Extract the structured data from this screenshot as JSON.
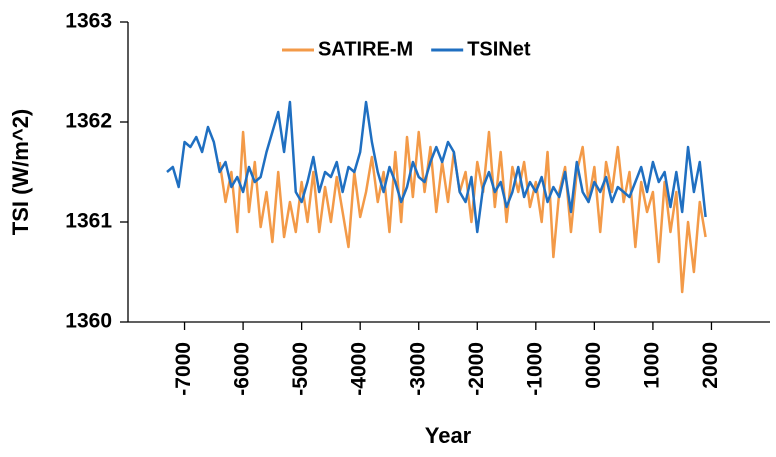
{
  "chart_data": {
    "type": "line",
    "x_label": "Year",
    "y_label": "TSI (W/m^2)",
    "x": [
      -7300,
      -7200,
      -7100,
      -7000,
      -6900,
      -6800,
      -6700,
      -6600,
      -6500,
      -6400,
      -6300,
      -6200,
      -6100,
      -6000,
      -5900,
      -5800,
      -5700,
      -5600,
      -5500,
      -5400,
      -5300,
      -5200,
      -5100,
      -5000,
      -4900,
      -4800,
      -4700,
      -4600,
      -4500,
      -4400,
      -4300,
      -4200,
      -4100,
      -4000,
      -3900,
      -3800,
      -3700,
      -3600,
      -3500,
      -3400,
      -3300,
      -3200,
      -3100,
      -3000,
      -2900,
      -2800,
      -2700,
      -2600,
      -2500,
      -2400,
      -2300,
      -2200,
      -2100,
      -2000,
      -1900,
      -1800,
      -1700,
      -1600,
      -1500,
      -1400,
      -1300,
      -1200,
      -1100,
      -1000,
      -900,
      -800,
      -700,
      -600,
      -500,
      -400,
      -300,
      -200,
      -100,
      0,
      100,
      200,
      300,
      400,
      500,
      600,
      700,
      800,
      900,
      1000,
      1100,
      1200,
      1300,
      1400,
      1500,
      1600,
      1700,
      1800,
      1900
    ],
    "series": [
      {
        "name": "SATIRE-M",
        "color": "#f39a48",
        "values": [
          null,
          null,
          null,
          null,
          null,
          null,
          null,
          null,
          null,
          1361.6,
          1361.2,
          1361.5,
          1360.9,
          1361.9,
          1361.1,
          1361.6,
          1360.95,
          1361.3,
          1360.8,
          1361.5,
          1360.85,
          1361.2,
          1360.9,
          1361.4,
          1361.0,
          1361.5,
          1360.9,
          1361.35,
          1361.0,
          1361.45,
          1361.1,
          1360.75,
          1361.5,
          1361.05,
          1361.3,
          1361.65,
          1361.2,
          1361.5,
          1360.9,
          1361.7,
          1361.0,
          1361.85,
          1361.25,
          1361.9,
          1361.3,
          1361.75,
          1361.1,
          1361.6,
          1361.2,
          1361.7,
          1361.3,
          1361.5,
          1361.0,
          1361.6,
          1361.3,
          1361.9,
          1361.15,
          1361.7,
          1361.0,
          1361.55,
          1361.3,
          1361.6,
          1361.15,
          1361.4,
          1361.0,
          1361.7,
          1360.65,
          1361.3,
          1361.55,
          1360.9,
          1361.5,
          1361.75,
          1361.2,
          1361.55,
          1360.9,
          1361.6,
          1361.3,
          1361.75,
          1361.2,
          1361.5,
          1360.75,
          1361.4,
          1361.1,
          1361.3,
          1360.6,
          1361.4,
          1360.9,
          1361.3,
          1360.3,
          1361.0,
          1360.5,
          1361.2,
          1360.85
        ]
      },
      {
        "name": "TSINet",
        "color": "#1f6fc1",
        "values": [
          1361.5,
          1361.55,
          1361.35,
          1361.8,
          1361.75,
          1361.85,
          1361.7,
          1361.95,
          1361.8,
          1361.5,
          1361.6,
          1361.35,
          1361.45,
          1361.3,
          1361.55,
          1361.4,
          1361.45,
          1361.7,
          1361.9,
          1362.1,
          1361.7,
          1362.2,
          1361.3,
          1361.2,
          1361.4,
          1361.65,
          1361.3,
          1361.5,
          1361.45,
          1361.6,
          1361.3,
          1361.55,
          1361.5,
          1361.7,
          1362.2,
          1361.8,
          1361.5,
          1361.3,
          1361.55,
          1361.4,
          1361.2,
          1361.35,
          1361.6,
          1361.45,
          1361.4,
          1361.6,
          1361.75,
          1361.6,
          1361.8,
          1361.7,
          1361.3,
          1361.2,
          1361.45,
          1360.9,
          1361.35,
          1361.5,
          1361.3,
          1361.4,
          1361.15,
          1361.3,
          1361.55,
          1361.25,
          1361.4,
          1361.3,
          1361.45,
          1361.2,
          1361.35,
          1361.25,
          1361.5,
          1361.1,
          1361.6,
          1361.3,
          1361.2,
          1361.4,
          1361.3,
          1361.45,
          1361.2,
          1361.35,
          1361.3,
          1361.25,
          1361.4,
          1361.55,
          1361.3,
          1361.6,
          1361.4,
          1361.5,
          1361.15,
          1361.5,
          1361.1,
          1361.75,
          1361.3,
          1361.6,
          1361.05
        ]
      }
    ],
    "xlim": [
      -8000,
      3000
    ],
    "xticks": [
      -7000,
      -6000,
      -5000,
      -4000,
      -3000,
      -2000,
      -1000,
      {
        "value": 0,
        "label": "0000"
      },
      1000,
      2000
    ],
    "ylim": [
      1360,
      1363
    ],
    "yticks": [
      1360,
      1361,
      1362,
      1363
    ],
    "grid": false,
    "legend": "top"
  }
}
